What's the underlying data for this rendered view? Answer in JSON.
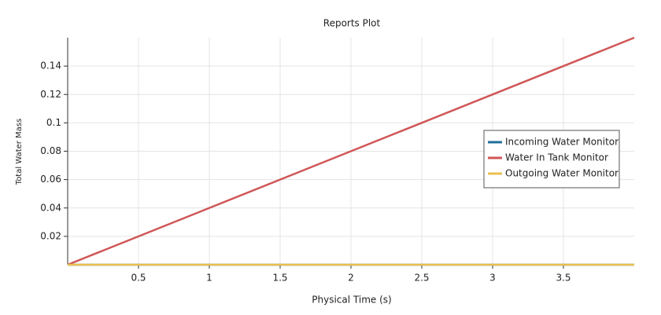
{
  "chart_data": {
    "type": "line",
    "title": "Reports Plot",
    "xlabel": "Physical Time (s)",
    "ylabel": "Total Water Mass",
    "x": [
      0,
      4
    ],
    "series": [
      {
        "name": "Incoming Water Monitor",
        "color": "#1f6f9a",
        "values": [
          0,
          0
        ]
      },
      {
        "name": "Water In Tank Monitor",
        "color": "#d05656",
        "values": [
          0,
          0.16
        ]
      },
      {
        "name": "Outgoing Water Monitor",
        "color": "#e8c050",
        "values": [
          0,
          0
        ]
      }
    ],
    "xlim": [
      0,
      4
    ],
    "ylim": [
      0,
      0.16
    ],
    "xticks": [
      0.5,
      1,
      1.5,
      2,
      2.5,
      3,
      3.5
    ],
    "yticks": [
      0.02,
      0.04,
      0.06,
      0.08,
      0.1,
      0.12,
      0.14
    ],
    "grid": true,
    "legend": "right"
  }
}
